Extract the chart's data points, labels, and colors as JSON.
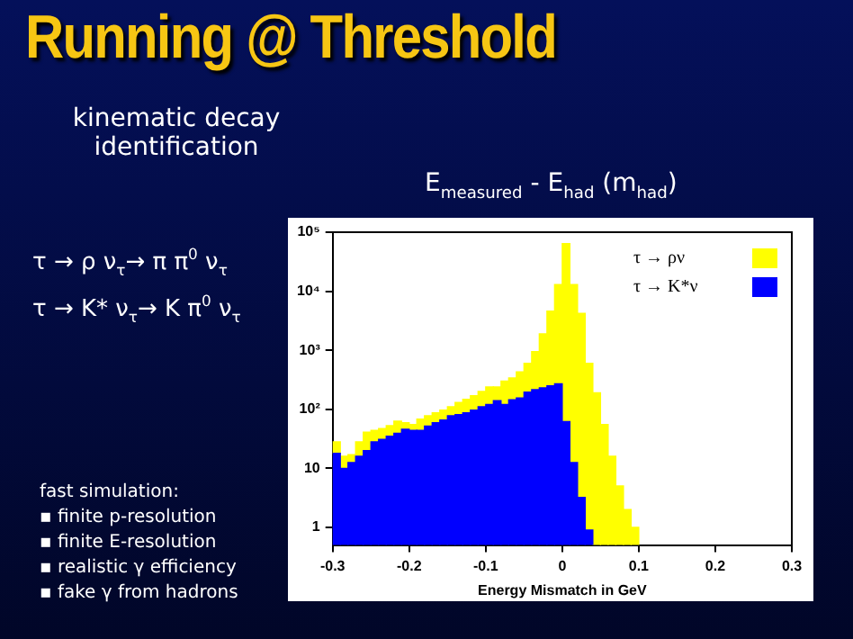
{
  "chart_data": {
    "type": "bar",
    "title": "Running @ Threshold",
    "subtitle": "E$_{measured}$ - E$_{had}$ (m$_{had}$)",
    "xlabel": "Energy Mismatch in GeV",
    "annotations": [
      "kinematic decay identification",
      "τ → ρ ν$_{τ}$→ π π$^{0}$ ν$_{τ}$",
      "τ → K* ν$_{τ}$→ K π$^{0}$ ν$_{τ}$",
      "fast simulation:",
      "▪ finite p-resolution",
      "▪ finite E-resolution",
      "▪ realistic γ efficiency",
      "▪ fake γ from hadrons"
    ],
    "x": [
      -0.295,
      -0.285,
      -0.275,
      -0.265,
      -0.255,
      -0.245,
      -0.235,
      -0.225,
      -0.215,
      -0.205,
      -0.195,
      -0.185,
      -0.175,
      -0.165,
      -0.155,
      -0.145,
      -0.135,
      -0.125,
      -0.115,
      -0.105,
      -0.095,
      -0.085,
      -0.075,
      -0.065,
      -0.055,
      -0.045,
      -0.035,
      -0.025,
      -0.015,
      -0.005,
      0.005,
      0.015,
      0.025,
      0.035,
      0.045,
      0.055,
      0.065,
      0.075,
      0.085,
      0.095
    ],
    "series": [
      {
        "name": "τ → K*ν",
        "color": "#0000ff",
        "values": [
          18,
          10,
          12.5,
          16,
          20,
          28,
          31,
          35,
          39,
          46,
          44,
          44,
          52,
          59,
          66,
          78,
          81,
          87,
          97,
          110,
          120,
          140,
          120,
          145,
          155,
          195,
          215,
          230,
          250,
          270,
          62,
          12.5,
          3.2,
          0.9,
          null,
          null,
          null,
          null,
          null,
          null
        ]
      },
      {
        "name": "τ → ρν",
        "color": "#ffff00",
        "values": [
          10,
          6,
          4.5,
          12,
          21,
          16,
          16,
          18,
          24,
          13,
          11,
          24,
          26,
          28,
          31,
          32,
          49,
          60,
          73,
          90,
          120,
          100,
          180,
          195,
          275,
          405,
          735,
          1670,
          4350,
          12700,
          63900,
          13000,
          4200,
          600,
          190,
          55,
          16,
          5,
          2,
          1
        ]
      }
    ],
    "stacked": true,
    "xlim": [
      -0.3,
      0.3
    ],
    "xticks": [
      -0.3,
      -0.2,
      -0.1,
      {
        "value": 0,
        "label": "0"
      },
      0.1,
      0.2,
      0.3
    ],
    "ylim": [
      0.5,
      100000
    ],
    "yticks": [
      1,
      10,
      {
        "value": 100,
        "label": "10²"
      },
      {
        "value": 1000,
        "label": "10³"
      },
      {
        "value": 10000,
        "label": "10⁴"
      },
      {
        "value": 100000,
        "label": "10⁵"
      }
    ],
    "log": "y",
    "grid": false,
    "legend": "top right"
  }
}
